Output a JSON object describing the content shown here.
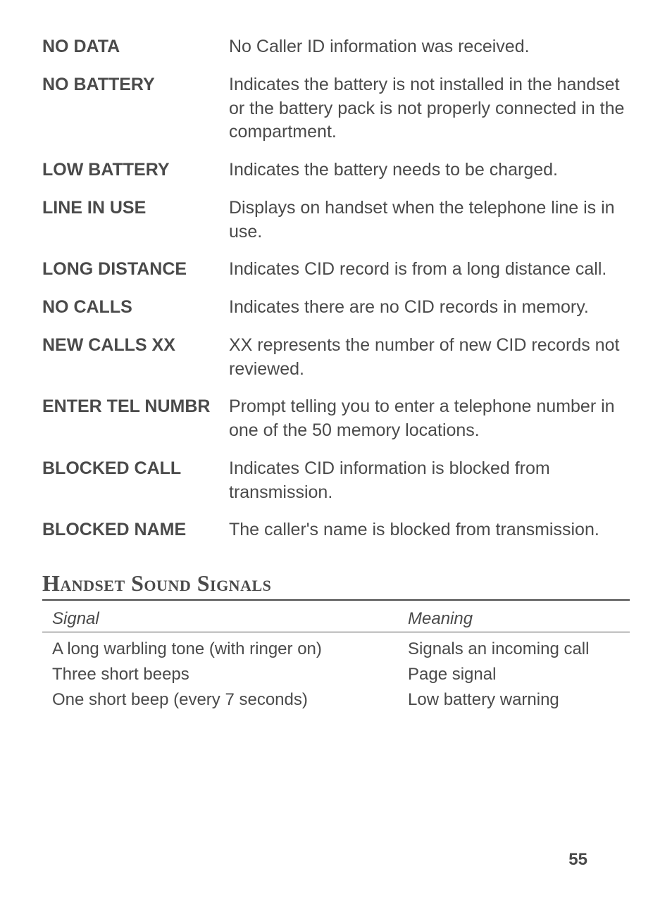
{
  "definitions": [
    {
      "term": "NO DATA",
      "desc": "No Caller ID information was received."
    },
    {
      "term": "NO BATTERY",
      "desc": "Indicates the battery is not installed in the handset or the battery pack is not properly connected in the compartment."
    },
    {
      "term": "LOW BATTERY",
      "desc": "Indicates the battery needs to be charged."
    },
    {
      "term": "LINE IN USE",
      "desc": "Displays on handset when the telephone line is in use."
    },
    {
      "term": "LONG DISTANCE",
      "desc": "Indicates CID record is from a long distance call."
    },
    {
      "term": "NO CALLS",
      "desc": "Indicates there are no CID records in memory."
    },
    {
      "term": "NEW CALLS XX",
      "desc": "XX represents the number of new CID records not reviewed."
    },
    {
      "term": "ENTER TEL NUMBR",
      "desc": "Prompt telling you to enter a telephone number in one of the 50 memory locations."
    },
    {
      "term": "BLOCKED CALL",
      "desc": "Indicates CID information is blocked from transmission."
    },
    {
      "term": "BLOCKED NAME",
      "desc": "The caller's name is blocked from transmission."
    }
  ],
  "section_title": "Handset Sound Signals",
  "table": {
    "head_left": "Signal",
    "head_right": "Meaning",
    "rows": [
      {
        "left": "A long warbling tone (with ringer on)",
        "right": "Signals an incoming call"
      },
      {
        "left": "Three short beeps",
        "right": "Page signal"
      },
      {
        "left": "One short beep (every 7 seconds)",
        "right": "Low battery warning"
      }
    ]
  },
  "page_number": "55",
  "colors": {
    "text": "#4a4a4a",
    "rule": "#4a4a4a",
    "background": "#ffffff"
  },
  "fonts": {
    "body_pt": 25,
    "table_pt": 24,
    "title_pt": 32
  }
}
